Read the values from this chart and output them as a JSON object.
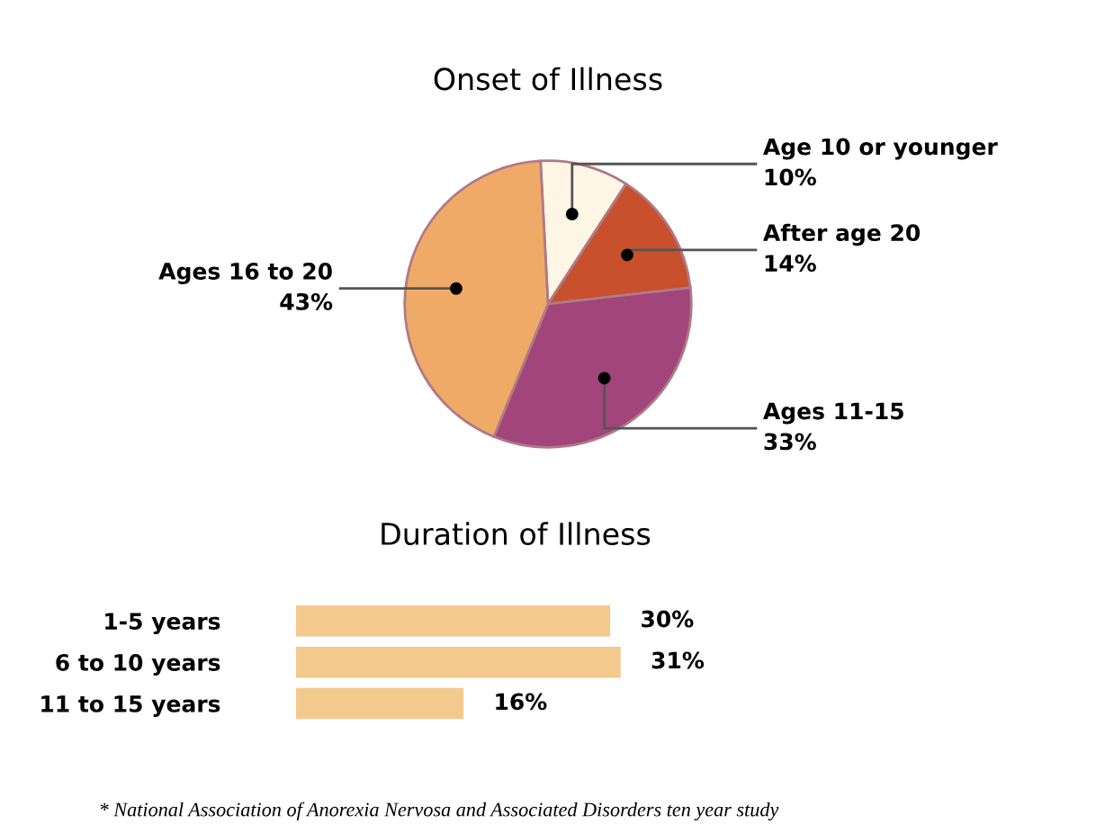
{
  "chart_data": [
    {
      "type": "pie",
      "title": "Onset of Illness",
      "categories": [
        "Age 10 or younger",
        "After age 20",
        "Ages 11-15",
        "Ages 16 to 20"
      ],
      "values": [
        10,
        14,
        33,
        43
      ],
      "value_labels": [
        "10%",
        "14%",
        "33%",
        "43%"
      ],
      "colors": [
        "#fdf6e4",
        "#c8502c",
        "#a1457a",
        "#f0aa68"
      ],
      "legend": false
    },
    {
      "type": "bar",
      "orientation": "horizontal",
      "title": "Duration of Illness",
      "categories": [
        "1-5 years",
        "6 to 10 years",
        "11 to 15 years"
      ],
      "values": [
        30,
        31,
        16
      ],
      "value_labels": [
        "30%",
        "31%",
        "16%"
      ],
      "color": "#f3c98e",
      "annotations": [
        "* National Association of Anorexia Nervosa and Associated Disorders ten year study"
      ]
    }
  ]
}
